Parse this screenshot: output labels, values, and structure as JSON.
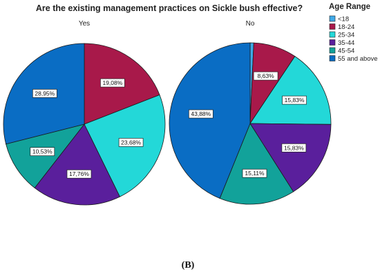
{
  "title": "Are the existing management practices on Sickle bush effective?",
  "caption": "(B)",
  "chart_data": {
    "type": "pie",
    "title": "Are the existing management practices on Sickle bush effective?",
    "legend": {
      "title": "Age Range",
      "position": "top-right",
      "items": [
        {
          "label": "<18",
          "color": "#3fa9e8"
        },
        {
          "label": "18-24",
          "color": "#a8194a"
        },
        {
          "label": "25-34",
          "color": "#23d8d8"
        },
        {
          "label": "35-44",
          "color": "#5a1f9c"
        },
        {
          "label": "45-54",
          "color": "#12a29a"
        },
        {
          "label": "55 and above",
          "color": "#0a6dc4"
        }
      ]
    },
    "pies": [
      {
        "name": "Yes",
        "slices": [
          {
            "category": "<18",
            "value": 0,
            "label": ""
          },
          {
            "category": "18-24",
            "value": 19.08,
            "label": "19,08%"
          },
          {
            "category": "25-34",
            "value": 23.68,
            "label": "23,68%"
          },
          {
            "category": "35-44",
            "value": 17.76,
            "label": "17,76%"
          },
          {
            "category": "45-54",
            "value": 10.53,
            "label": "10,53%"
          },
          {
            "category": "55 and above",
            "value": 28.95,
            "label": "28,95%"
          }
        ]
      },
      {
        "name": "No",
        "slices": [
          {
            "category": "<18",
            "value": 0.72,
            "label": ""
          },
          {
            "category": "18-24",
            "value": 8.63,
            "label": "8,63%"
          },
          {
            "category": "25-34",
            "value": 15.83,
            "label": "15,83%"
          },
          {
            "category": "35-44",
            "value": 15.83,
            "label": "15,83%"
          },
          {
            "category": "45-54",
            "value": 15.11,
            "label": "15,11%"
          },
          {
            "category": "55 and above",
            "value": 43.88,
            "label": "43,88%"
          }
        ]
      }
    ]
  }
}
